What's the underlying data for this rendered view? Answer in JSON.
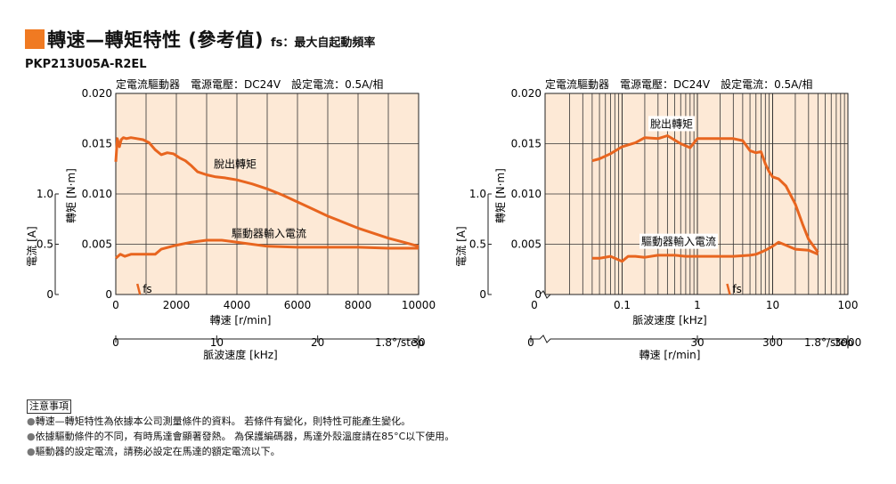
{
  "header": {
    "title": "轉速—轉矩特性 (參考值)",
    "subtitle": "fs：最大自起動頻率",
    "model": "PKP213U05A-R2EL",
    "accent_color": "#f07a22"
  },
  "chart_data": [
    {
      "type": "line",
      "conditions": "定電流驅動器　電源電壓：DC24V　設定電流：0.5A/相",
      "xlabel": "轉速 [r/min]",
      "x_scale": "linear",
      "xlim": [
        0,
        10000
      ],
      "x_ticks": [
        "0",
        "2000",
        "4000",
        "6000",
        "8000",
        "10000"
      ],
      "ylabel": "轉矩 [N·m]",
      "ylim": [
        0,
        0.02
      ],
      "y_ticks": [
        "0",
        "0.005",
        "0.010",
        "0.015",
        "0.020"
      ],
      "ylabel2": "電流 [A]",
      "y2_ticks": [
        "0",
        "0.5",
        "1.0"
      ],
      "secondary_axis_label": "脈波速度 [kHz]",
      "secondary_axis_ticks": [
        "0",
        "10",
        "20",
        "30"
      ],
      "secondary_axis_suffix": "1.8°/step",
      "fs_label": "fs",
      "fs_x": 800,
      "grid": true,
      "background": "#fde9d6",
      "line_color": "#e8651f",
      "series": [
        {
          "name": "脫出轉矩",
          "x": [
            0,
            50,
            120,
            180,
            250,
            350,
            500,
            700,
            900,
            1100,
            1300,
            1500,
            1700,
            1900,
            2100,
            2300,
            2500,
            2700,
            3000,
            3300,
            3600,
            4000,
            4500,
            5000,
            5500,
            6000,
            6500,
            7000,
            7500,
            8000,
            8500,
            9000,
            9500,
            10000
          ],
          "y": [
            0.0132,
            0.0155,
            0.0147,
            0.0154,
            0.0156,
            0.0155,
            0.0156,
            0.0155,
            0.0154,
            0.0151,
            0.0144,
            0.0139,
            0.0141,
            0.014,
            0.0136,
            0.0133,
            0.0128,
            0.0122,
            0.0119,
            0.0117,
            0.0116,
            0.0114,
            0.011,
            0.0105,
            0.0099,
            0.0092,
            0.0085,
            0.0078,
            0.0072,
            0.0066,
            0.0061,
            0.0056,
            0.0052,
            0.0048
          ]
        },
        {
          "name": "驅動器輸入電流",
          "x": [
            0,
            150,
            300,
            500,
            800,
            1000,
            1300,
            1500,
            2000,
            2500,
            3000,
            3500,
            4000,
            5000,
            6000,
            7000,
            8000,
            9000,
            10000
          ],
          "y": [
            0.0036,
            0.004,
            0.0038,
            0.004,
            0.004,
            0.004,
            0.004,
            0.0045,
            0.0049,
            0.0052,
            0.0054,
            0.0054,
            0.0052,
            0.0048,
            0.0047,
            0.0047,
            0.0047,
            0.0046,
            0.0046
          ]
        }
      ]
    },
    {
      "type": "line",
      "conditions": "定電流驅動器　電源電壓：DC24V　設定電流：0.5A/相",
      "xlabel": "脈波速度 [kHz]",
      "x_scale": "log",
      "xlim": [
        0.01,
        100
      ],
      "x_ticks": [
        "0",
        "0.1",
        "1",
        "10",
        "100"
      ],
      "ylabel": "轉矩 [N·m]",
      "ylim": [
        0,
        0.02
      ],
      "y_ticks": [
        "0",
        "0.005",
        "0.010",
        "0.015",
        "0.020"
      ],
      "ylabel2": "電流 [A]",
      "y2_ticks": [
        "0",
        "0.5",
        "1.0"
      ],
      "secondary_axis_label": "轉速 [r/min]",
      "secondary_axis_ticks": [
        "0",
        "30",
        "300",
        "3000"
      ],
      "secondary_axis_suffix": "1.8°/step",
      "fs_label": "fs",
      "fs_x": 2.7,
      "grid": true,
      "background": "#fde9d6",
      "line_color": "#e8651f",
      "series": [
        {
          "name": "脫出轉矩",
          "x": [
            0.04,
            0.05,
            0.07,
            0.1,
            0.15,
            0.2,
            0.3,
            0.4,
            0.6,
            0.8,
            1.0,
            1.5,
            2.0,
            3.0,
            4.0,
            5.0,
            6.0,
            7.0,
            8.0,
            9.0,
            10.0,
            12.0,
            15.0,
            20.0,
            25.0,
            30.0,
            40.0
          ],
          "y": [
            0.0133,
            0.0135,
            0.014,
            0.0147,
            0.0151,
            0.0156,
            0.0155,
            0.0158,
            0.015,
            0.0146,
            0.0155,
            0.0155,
            0.0155,
            0.0155,
            0.0153,
            0.0143,
            0.0141,
            0.0142,
            0.013,
            0.0122,
            0.0117,
            0.0115,
            0.0108,
            0.009,
            0.007,
            0.0055,
            0.0042
          ]
        },
        {
          "name": "驅動器輸入電流",
          "x": [
            0.04,
            0.05,
            0.07,
            0.1,
            0.12,
            0.15,
            0.2,
            0.3,
            0.5,
            0.7,
            1.0,
            1.5,
            2.0,
            3.0,
            5.0,
            6.0,
            7.0,
            8.0,
            10.0,
            12.0,
            15.0,
            20.0,
            30.0,
            40.0
          ],
          "y": [
            0.0036,
            0.0036,
            0.0038,
            0.0033,
            0.0038,
            0.0038,
            0.0037,
            0.0039,
            0.0039,
            0.0038,
            0.0038,
            0.0038,
            0.0038,
            0.0038,
            0.0039,
            0.004,
            0.0042,
            0.0044,
            0.0048,
            0.0052,
            0.0049,
            0.0045,
            0.0044,
            0.004
          ]
        }
      ]
    }
  ],
  "notes": {
    "title": "注意事項",
    "lines": [
      "轉速—轉矩特性為依據本公司測量條件的資料。 若條件有變化，則特性可能產生變化。",
      "依據驅動條件的不同，有時馬達會顯著發熱。 為保護編碼器，馬達外殼溫度請在85°C以下使用。",
      "驅動器的設定電流，請務必設定在馬達的額定電流以下。"
    ],
    "bullet": "●"
  }
}
